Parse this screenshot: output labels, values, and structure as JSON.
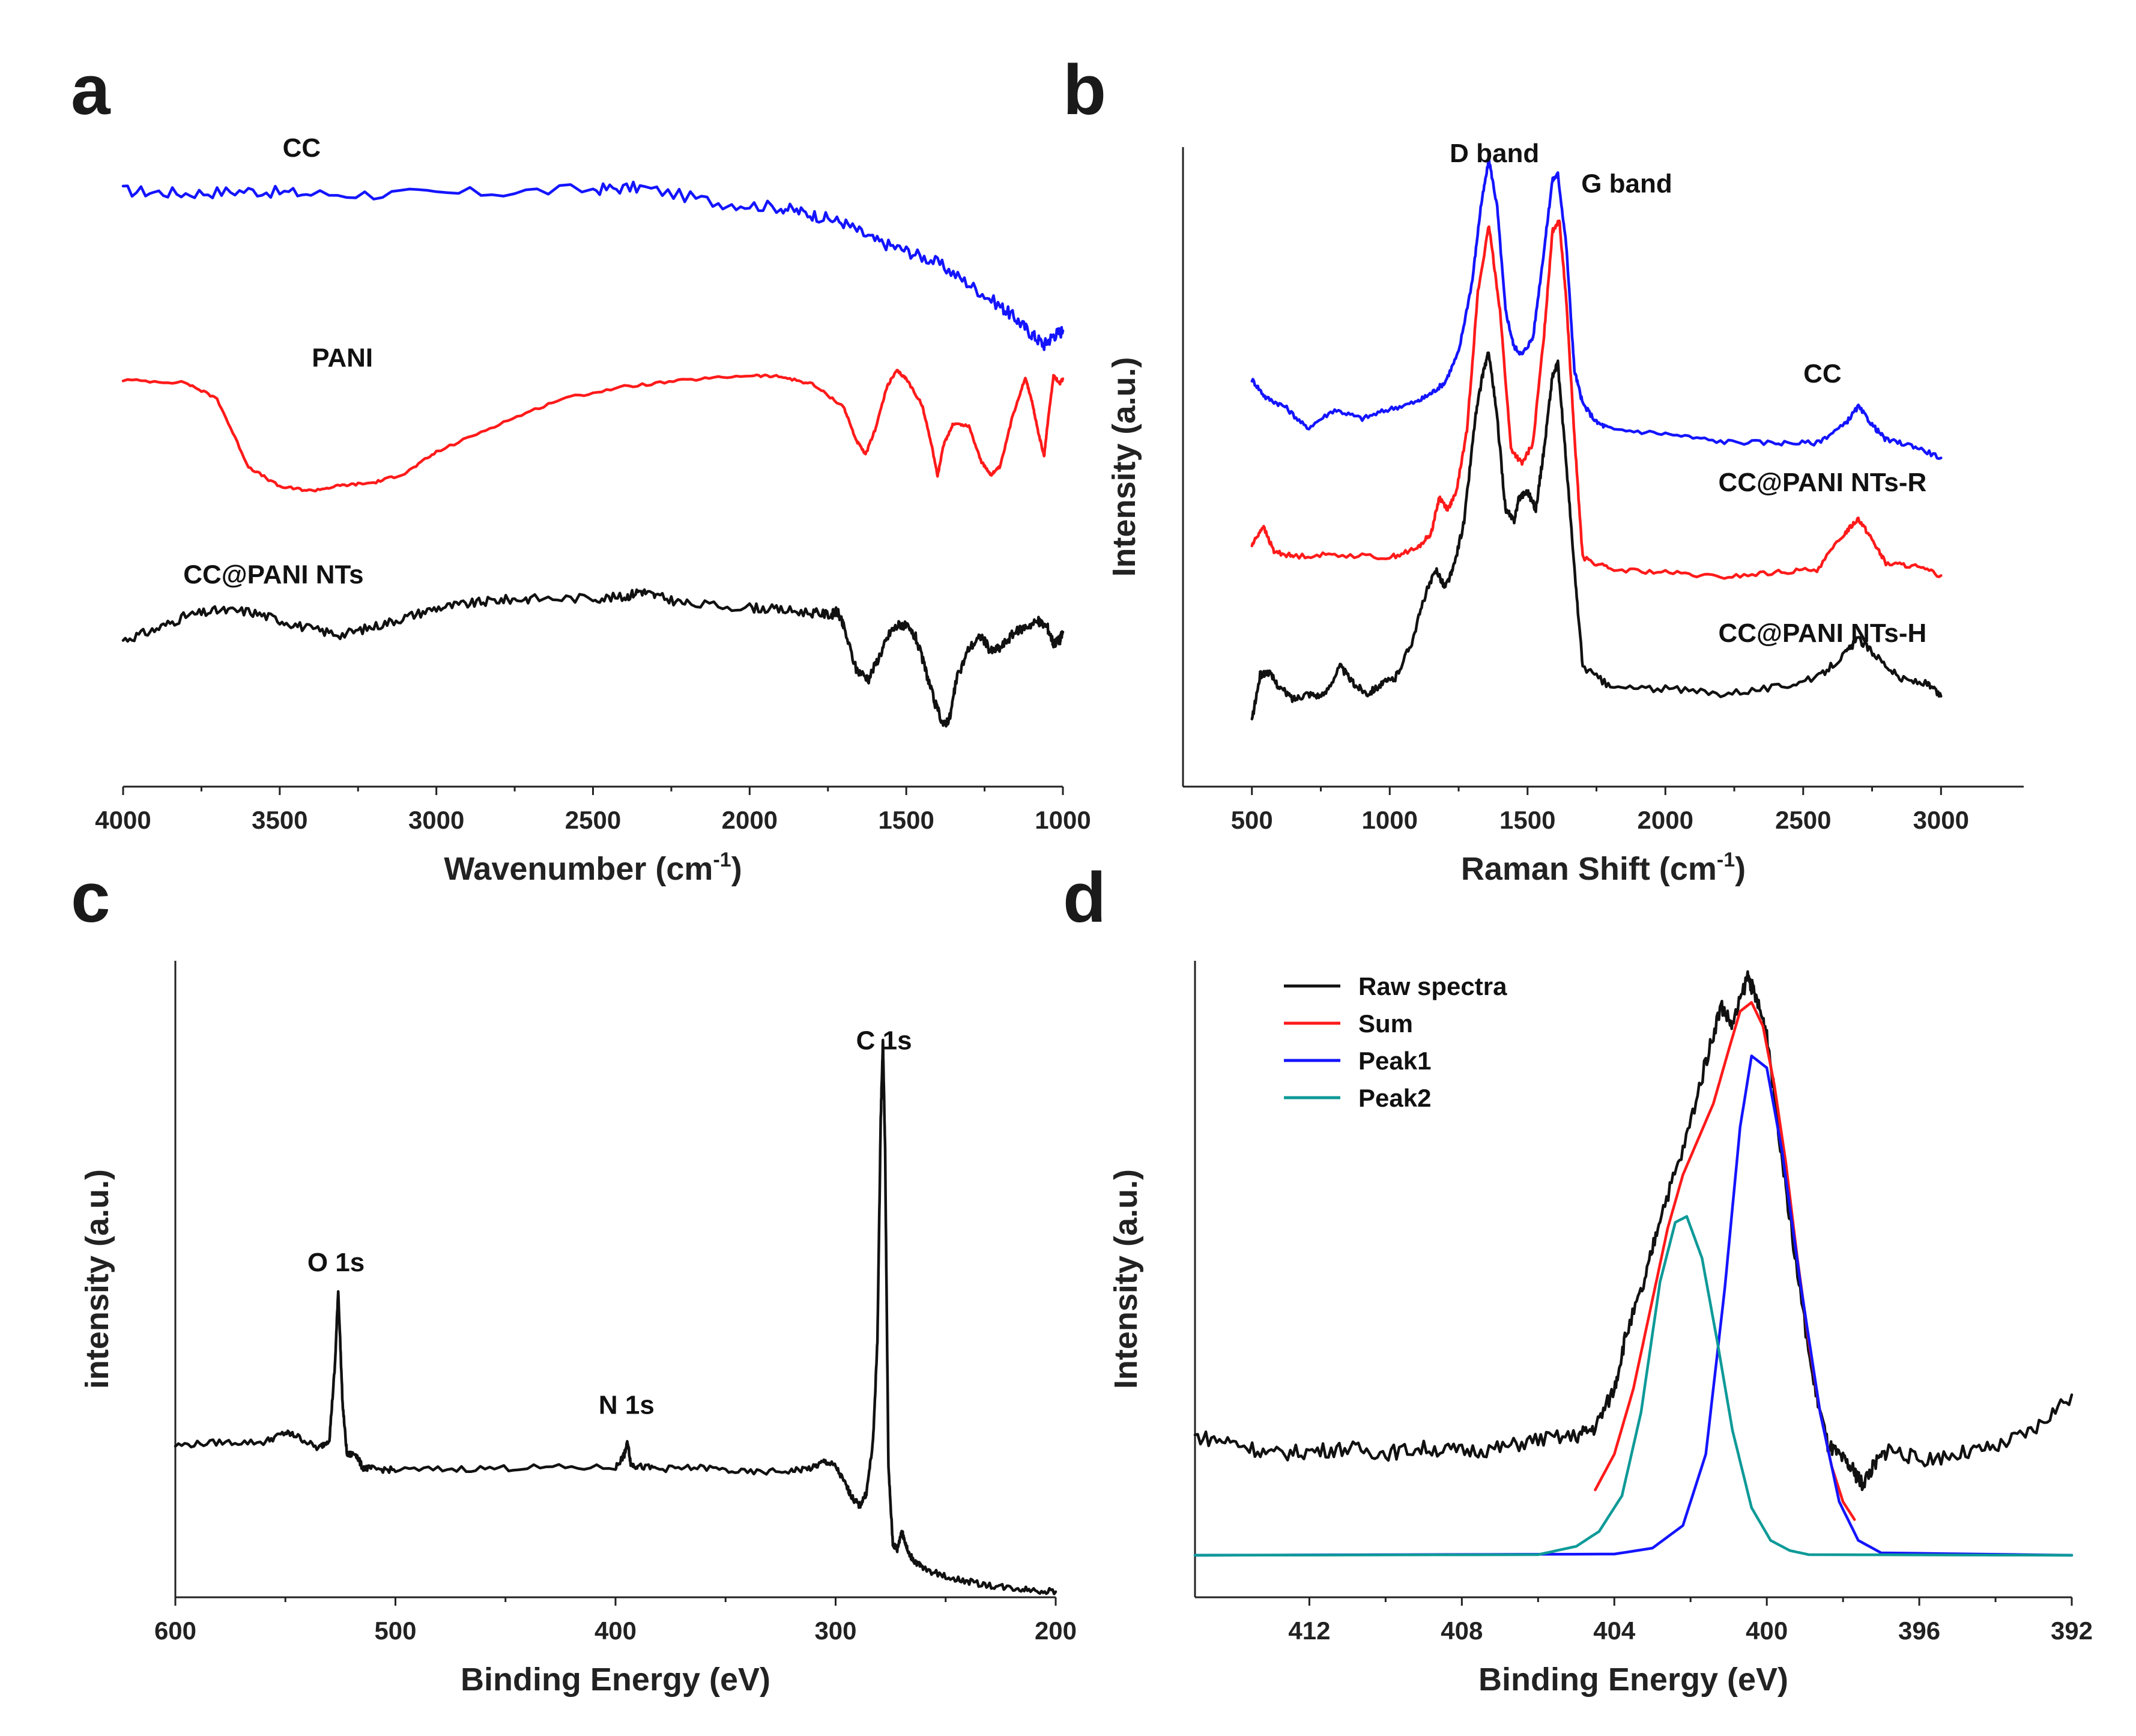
{
  "colors": {
    "blue": "#1414ff",
    "red": "#ff1a1a",
    "black": "#111111",
    "teal": "#0e9a98"
  },
  "chart_data": [
    {
      "id": "a",
      "letter": "a",
      "type": "line",
      "xlabel": "Wavenumber (cm",
      "xlabel_sup": "-1",
      "xlabel_end": ")",
      "ylabel": "",
      "xlim": [
        4000,
        1000
      ],
      "xticks": [
        4000,
        3500,
        3000,
        2500,
        2000,
        1500,
        1000
      ],
      "xtick_labels": [
        "4000",
        "3500",
        "3000",
        "2500",
        "2000",
        "1500",
        "1000"
      ],
      "ylim": [
        0,
        100
      ],
      "grid": false,
      "annotations": [
        {
          "text": "CC",
          "x": 3430,
          "y": 94.5
        },
        {
          "text": "PANI",
          "x": 3300,
          "y": 63
        },
        {
          "text": "CC@PANI NTs",
          "x": 3520,
          "y": 30.5
        }
      ],
      "series": [
        {
          "name": "CC",
          "color": "#1414ff",
          "noise": 0.9,
          "x": [
            4000,
            3800,
            3600,
            3400,
            3000,
            2500,
            2350,
            2100,
            1900,
            1800,
            1700,
            1600,
            1500,
            1400,
            1300,
            1200,
            1150,
            1100,
            1060,
            1030,
            1000
          ],
          "y": [
            89.4,
            89.0,
            89.4,
            88.9,
            88.9,
            89.6,
            89.9,
            87.6,
            86.9,
            85.8,
            84.6,
            81.9,
            80.4,
            78.6,
            75.4,
            72.1,
            70.2,
            67.9,
            66.3,
            67.7,
            68.4
          ]
        },
        {
          "name": "PANI",
          "color": "#ff1a1a",
          "noise": 0.2,
          "x": [
            4000,
            3800,
            3700,
            3600,
            3500,
            3400,
            3300,
            3200,
            3100,
            3000,
            2800,
            2600,
            2400,
            2200,
            2000,
            1900,
            1800,
            1700,
            1660,
            1630,
            1600,
            1560,
            1530,
            1500,
            1450,
            1420,
            1400,
            1380,
            1350,
            1300,
            1260,
            1230,
            1200,
            1160,
            1120,
            1100,
            1080,
            1060,
            1050,
            1030,
            1010,
            1000
          ],
          "y": [
            61.0,
            60.6,
            58.2,
            48.0,
            45.0,
            44.4,
            45.2,
            45.6,
            47.0,
            50.2,
            54.4,
            58.2,
            60.0,
            61.0,
            61.7,
            61.5,
            60.4,
            57.0,
            52.0,
            49.8,
            53.5,
            60.2,
            62.4,
            61.2,
            57.3,
            51.5,
            46.6,
            51.4,
            54.5,
            54.1,
            48.7,
            46.8,
            48.0,
            55.7,
            61.4,
            58.0,
            53.5,
            49.5,
            54.0,
            61.7,
            60.5,
            61.2
          ]
        },
        {
          "name": "CC@PANI NTs",
          "color": "#111111",
          "noise": 0.7,
          "x": [
            4000,
            3900,
            3800,
            3700,
            3600,
            3500,
            3400,
            3300,
            3200,
            3100,
            3000,
            2900,
            2800,
            2700,
            2500,
            2400,
            2350,
            2300,
            2200,
            2000,
            1900,
            1800,
            1740,
            1720,
            1700,
            1660,
            1620,
            1580,
            1550,
            1520,
            1500,
            1470,
            1440,
            1410,
            1380,
            1360,
            1340,
            1300,
            1260,
            1230,
            1200,
            1160,
            1120,
            1080,
            1050,
            1030,
            1010,
            1000
          ],
          "y": [
            22.0,
            23.5,
            25.6,
            26.4,
            26.3,
            25.0,
            23.6,
            22.8,
            24.0,
            25.4,
            26.8,
            27.4,
            28.0,
            28.2,
            28.3,
            28.4,
            29.4,
            28.6,
            27.4,
            26.9,
            26.5,
            26.1,
            25.8,
            26.3,
            24.0,
            17.6,
            16.2,
            20.2,
            23.3,
            24.4,
            24.0,
            22.4,
            17.8,
            12.7,
            9.2,
            10.5,
            16.0,
            20.8,
            22.6,
            20.3,
            20.8,
            22.9,
            24.0,
            24.8,
            24.0,
            21.5,
            22.0,
            23.2
          ]
        }
      ]
    },
    {
      "id": "b",
      "letter": "b",
      "type": "line",
      "xlabel": "Raman Shift (cm",
      "xlabel_sup": "-1",
      "xlabel_end": ")",
      "ylabel": "Intensity (a.u.)",
      "xlim": [
        250,
        3300
      ],
      "xticks": [
        500,
        1000,
        1500,
        2000,
        2500,
        3000
      ],
      "xtick_labels": [
        "500",
        "1000",
        "1500",
        "2000",
        "2500",
        "3000"
      ],
      "ylim": [
        0,
        100
      ],
      "grid": false,
      "annotations": [
        {
          "text": "D band",
          "x": 1380,
          "y": 97.5
        },
        {
          "text": "G band",
          "x": 1860,
          "y": 92.5
        },
        {
          "text": "CC",
          "x": 2570,
          "y": 61
        },
        {
          "text": "CC@PANI NTs-R",
          "x": 2570,
          "y": 43
        },
        {
          "text": "CC@PANI NTs-H",
          "x": 2570,
          "y": 18
        }
      ],
      "series": [
        {
          "name": "CC",
          "color": "#1414ff",
          "noise": 0.4,
          "x": [
            500,
            550,
            620,
            700,
            800,
            900,
            1000,
            1100,
            1150,
            1200,
            1250,
            1300,
            1330,
            1360,
            1390,
            1420,
            1450,
            1480,
            1520,
            1560,
            1590,
            1610,
            1640,
            1670,
            1700,
            1750,
            1800,
            2000,
            2200,
            2400,
            2550,
            2650,
            2700,
            2750,
            2800,
            2900,
            3000
          ],
          "y": [
            61.5,
            58.5,
            57.0,
            53.4,
            56.5,
            55.0,
            56.6,
            57.8,
            59.2,
            61.0,
            66.0,
            78.0,
            90.0,
            98.0,
            90.0,
            73.0,
            67.0,
            65.6,
            68.5,
            83.0,
            94.5,
            95.5,
            84.0,
            63.0,
            57.5,
            54.4,
            53.3,
            52.5,
            51.2,
            51.0,
            51.0,
            54.0,
            57.0,
            54.0,
            51.5,
            50.5,
            48.5
          ]
        },
        {
          "name": "CC@PANI NTs-R",
          "color": "#ff1a1a",
          "noise": 0.4,
          "x": [
            500,
            540,
            580,
            650,
            800,
            1000,
            1100,
            1150,
            1180,
            1210,
            1240,
            1280,
            1320,
            1360,
            1400,
            1440,
            1480,
            1520,
            1560,
            1590,
            1615,
            1640,
            1670,
            1700,
            1800,
            2000,
            2200,
            2400,
            2550,
            2650,
            2700,
            2750,
            2800,
            2900,
            3000
          ],
          "y": [
            34.0,
            37.2,
            33.0,
            32.2,
            32.5,
            32.0,
            33.5,
            36.0,
            42.0,
            40.0,
            42.5,
            53.0,
            76.0,
            87.0,
            73.0,
            50.0,
            47.5,
            51.0,
            69.0,
            86.0,
            88.0,
            75.0,
            52.0,
            32.0,
            30.0,
            29.5,
            28.7,
            29.5,
            30.0,
            36.0,
            38.5,
            35.0,
            31.0,
            30.6,
            29.0
          ]
        },
        {
          "name": "CC@PANI NTs-H",
          "color": "#111111",
          "noise": 0.6,
          "x": [
            500,
            530,
            560,
            600,
            650,
            700,
            760,
            820,
            870,
            920,
            970,
            1020,
            1080,
            1130,
            1170,
            1200,
            1230,
            1270,
            1310,
            1340,
            1360,
            1390,
            1420,
            1450,
            1470,
            1500,
            1530,
            1560,
            1590,
            1610,
            1640,
            1670,
            1700,
            1800,
            2000,
            2200,
            2400,
            2550,
            2650,
            2700,
            2760,
            2850,
            2950,
            3000
          ],
          "y": [
            5.0,
            12.5,
            13.0,
            10.5,
            8.5,
            9.5,
            9.0,
            14.0,
            11.0,
            9.5,
            11.0,
            12.0,
            18.0,
            26.0,
            30.0,
            27.0,
            30.0,
            38.0,
            55.0,
            63.0,
            66.0,
            55.0,
            40.0,
            38.0,
            42.0,
            43.0,
            40.0,
            50.0,
            62.0,
            64.0,
            48.0,
            30.0,
            14.0,
            10.5,
            10.2,
            9.5,
            10.5,
            12.0,
            16.0,
            18.5,
            16.0,
            12.0,
            11.0,
            9.0
          ]
        }
      ]
    },
    {
      "id": "c",
      "letter": "c",
      "type": "line",
      "xlabel": "Binding Energy (eV)",
      "ylabel": "intensity (a.u.)",
      "xlim": [
        600,
        200
      ],
      "xticks": [
        600,
        500,
        400,
        300,
        200
      ],
      "xtick_labels": [
        "600",
        "500",
        "400",
        "300",
        "200"
      ],
      "ylim": [
        0,
        100
      ],
      "grid": false,
      "annotations": [
        {
          "text": "O 1s",
          "x": 527,
          "y": 51
        },
        {
          "text": "N 1s",
          "x": 395,
          "y": 28.5
        },
        {
          "text": "C 1s",
          "x": 278,
          "y": 86
        }
      ],
      "series": [
        {
          "name": "",
          "color": "#111111",
          "noise": 0.5,
          "x": [
            600,
            580,
            560,
            550,
            545,
            535,
            530,
            527.5,
            526,
            524,
            522,
            518,
            515,
            510,
            500,
            470,
            440,
            400,
            396,
            394.5,
            393,
            390,
            380,
            360,
            340,
            320,
            310,
            305,
            300,
            295,
            292,
            289,
            286,
            283,
            281,
            279.5,
            278.5,
            277.5,
            276,
            274,
            272,
            270,
            269,
            267,
            264,
            260,
            250,
            240,
            230,
            220,
            210,
            200
          ],
          "y": [
            23.5,
            24.0,
            24.0,
            25.5,
            25.0,
            23.0,
            24.5,
            36.0,
            48.0,
            30.0,
            22.0,
            22.2,
            20.0,
            19.8,
            19.6,
            19.8,
            20.0,
            20.0,
            22.0,
            24.0,
            20.5,
            20.2,
            19.8,
            20.0,
            19.2,
            19.5,
            20.0,
            21.0,
            20.2,
            17.0,
            15.0,
            14.0,
            16.0,
            24.0,
            40.0,
            75.0,
            87.5,
            70.0,
            20.0,
            8.0,
            7.0,
            10.0,
            9.0,
            6.5,
            5.2,
            4.0,
            2.8,
            2.0,
            1.4,
            1.0,
            0.7,
            0.4
          ]
        }
      ]
    },
    {
      "id": "d",
      "letter": "d",
      "type": "line",
      "xlabel": "Binding Energy (eV)",
      "ylabel": "Intensity (a.u.)",
      "xlim": [
        415,
        392
      ],
      "xticks": [
        412,
        408,
        404,
        400,
        396,
        392
      ],
      "xtick_labels": [
        "412",
        "408",
        "404",
        "400",
        "396",
        "392"
      ],
      "ylim": [
        0,
        100
      ],
      "grid": false,
      "legend": {
        "position": "top-left",
        "entries": [
          "Raw spectra",
          "Sum",
          "Peak1",
          "Peak2"
        ]
      },
      "series": [
        {
          "name": "Raw spectra",
          "color": "#111111",
          "noise": 1.3,
          "x": [
            415,
            414,
            413,
            412,
            411,
            410,
            409,
            408,
            407,
            406,
            405,
            404.5,
            404,
            403.7,
            403.2,
            402.8,
            402.2,
            401.6,
            401.2,
            400.9,
            400.5,
            400.3,
            400.0,
            399.7,
            399.3,
            398.8,
            398.4,
            398.0,
            397.7,
            397.5,
            397.2,
            396.8,
            396.0,
            395.0,
            394.0,
            393.0,
            392.0
          ],
          "y": [
            20.0,
            19.0,
            17.0,
            17.5,
            18.0,
            17.2,
            18.0,
            17.5,
            18.0,
            19.5,
            20.0,
            21.5,
            28.0,
            37.0,
            46.0,
            57.0,
            68.0,
            83.0,
            92.5,
            89.0,
            97.5,
            94.0,
            88.0,
            72.0,
            52.0,
            30.0,
            18.5,
            16.0,
            14.0,
            12.0,
            15.0,
            18.0,
            16.0,
            17.0,
            18.0,
            21.0,
            27.0
          ]
        },
        {
          "name": "Sum",
          "color": "#ff1a1a",
          "x": [
            404.5,
            404.0,
            403.5,
            403.0,
            402.6,
            402.2,
            401.8,
            401.4,
            401.0,
            400.7,
            400.4,
            400.1,
            399.8,
            399.5,
            399.2,
            398.9,
            398.6,
            398.3,
            398.0,
            397.7
          ],
          "y": [
            11.0,
            17.0,
            28.0,
            43.0,
            55.0,
            64.0,
            70.0,
            76.0,
            85.0,
            91.5,
            93.0,
            89.0,
            79.0,
            66.0,
            50.0,
            36.0,
            24.0,
            15.0,
            9.0,
            6.0
          ]
        },
        {
          "name": "Peak1",
          "color": "#1414ff",
          "x": [
            415,
            404.0,
            403.0,
            402.2,
            401.6,
            401.1,
            400.7,
            400.4,
            400.0,
            399.6,
            399.1,
            398.6,
            398.1,
            397.6,
            397.0,
            392.0
          ],
          "y": [
            0,
            0.2,
            1.2,
            5.0,
            17.0,
            45.0,
            72.0,
            84.0,
            82.0,
            68.0,
            45.0,
            24.0,
            9.0,
            2.5,
            0.4,
            0
          ]
        },
        {
          "name": "Peak2",
          "color": "#0e9a98",
          "x": [
            415,
            406.0,
            405.0,
            404.4,
            403.8,
            403.3,
            402.8,
            402.4,
            402.1,
            401.7,
            401.3,
            400.9,
            400.4,
            399.9,
            399.4,
            398.9,
            392.0
          ],
          "y": [
            0,
            0.1,
            1.5,
            4.0,
            10.0,
            24.0,
            46.0,
            56.0,
            57.0,
            50.0,
            36.0,
            21.0,
            8.0,
            2.5,
            0.8,
            0.1,
            0
          ]
        }
      ]
    }
  ]
}
